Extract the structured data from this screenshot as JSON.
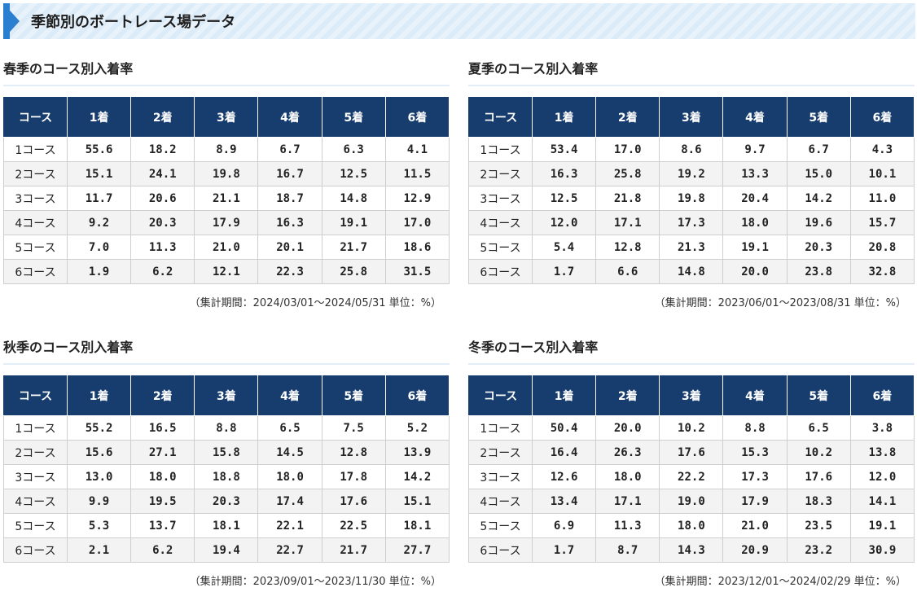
{
  "page_title": "季節別のボートレース場データ",
  "headers": [
    "コース",
    "1着",
    "2着",
    "3着",
    "4着",
    "5着",
    "6着"
  ],
  "row_labels": [
    "1コース",
    "2コース",
    "3コース",
    "4コース",
    "5コース",
    "6コース"
  ],
  "sections": [
    {
      "title": "春季のコース別入着率",
      "rows": [
        [
          "55.6",
          "18.2",
          "8.9",
          "6.7",
          "6.3",
          "4.1"
        ],
        [
          "15.1",
          "24.1",
          "19.8",
          "16.7",
          "12.5",
          "11.5"
        ],
        [
          "11.7",
          "20.6",
          "21.1",
          "18.7",
          "14.8",
          "12.9"
        ],
        [
          "9.2",
          "20.3",
          "17.9",
          "16.3",
          "19.1",
          "17.0"
        ],
        [
          "7.0",
          "11.3",
          "21.0",
          "20.1",
          "21.7",
          "18.6"
        ],
        [
          "1.9",
          "6.2",
          "12.1",
          "22.3",
          "25.8",
          "31.5"
        ]
      ],
      "period": "（集計期間：2024/03/01～2024/05/31 単位：%）"
    },
    {
      "title": "夏季のコース別入着率",
      "rows": [
        [
          "53.4",
          "17.0",
          "8.6",
          "9.7",
          "6.7",
          "4.3"
        ],
        [
          "16.3",
          "25.8",
          "19.2",
          "13.3",
          "15.0",
          "10.1"
        ],
        [
          "12.5",
          "21.8",
          "19.8",
          "20.4",
          "14.2",
          "11.0"
        ],
        [
          "12.0",
          "17.1",
          "17.3",
          "18.0",
          "19.6",
          "15.7"
        ],
        [
          "5.4",
          "12.8",
          "21.3",
          "19.1",
          "20.3",
          "20.8"
        ],
        [
          "1.7",
          "6.6",
          "14.8",
          "20.0",
          "23.8",
          "32.8"
        ]
      ],
      "period": "（集計期間：2023/06/01～2023/08/31 単位：%）"
    },
    {
      "title": "秋季のコース別入着率",
      "rows": [
        [
          "55.2",
          "16.5",
          "8.8",
          "6.5",
          "7.5",
          "5.2"
        ],
        [
          "15.6",
          "27.1",
          "15.8",
          "14.5",
          "12.8",
          "13.9"
        ],
        [
          "13.0",
          "18.0",
          "18.8",
          "18.0",
          "17.8",
          "14.2"
        ],
        [
          "9.9",
          "19.5",
          "20.3",
          "17.4",
          "17.6",
          "15.1"
        ],
        [
          "5.3",
          "13.7",
          "18.1",
          "22.1",
          "22.5",
          "18.1"
        ],
        [
          "2.1",
          "6.2",
          "19.4",
          "22.7",
          "21.7",
          "27.7"
        ]
      ],
      "period": "（集計期間：2023/09/01～2023/11/30 単位：%）"
    },
    {
      "title": "冬季のコース別入着率",
      "rows": [
        [
          "50.4",
          "20.0",
          "10.2",
          "8.8",
          "6.5",
          "3.8"
        ],
        [
          "16.4",
          "26.3",
          "17.6",
          "15.3",
          "10.2",
          "13.8"
        ],
        [
          "12.6",
          "18.0",
          "22.2",
          "17.3",
          "17.6",
          "12.0"
        ],
        [
          "13.4",
          "17.1",
          "19.0",
          "17.9",
          "18.3",
          "14.1"
        ],
        [
          "6.9",
          "11.3",
          "18.0",
          "21.0",
          "23.5",
          "19.1"
        ],
        [
          "1.7",
          "8.7",
          "14.3",
          "20.9",
          "23.2",
          "30.9"
        ]
      ],
      "period": "（集計期間：2023/12/01～2024/02/29 単位：%）"
    }
  ]
}
